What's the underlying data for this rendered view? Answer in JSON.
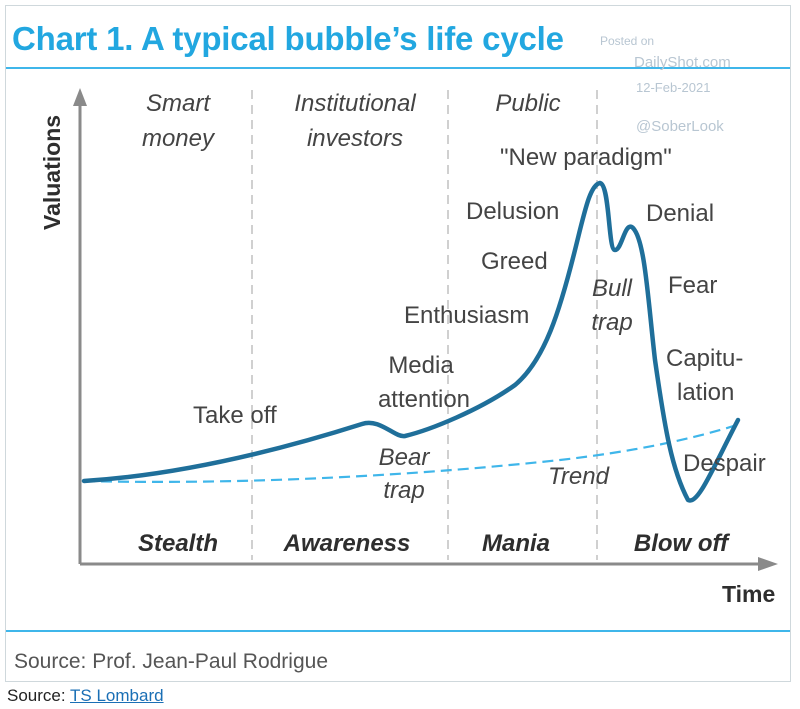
{
  "title": "Chart 1. A typical bubble’s life cycle",
  "watermark": {
    "posted_on": "Posted on",
    "site": "DailyShot.com",
    "date": "12-Feb-2021",
    "handle": "@SoberLook"
  },
  "axes": {
    "y_label": "Valuations",
    "x_label": "Time"
  },
  "columns": {
    "smart_money": [
      "Smart",
      "money"
    ],
    "institutional": [
      "Institutional",
      "investors"
    ],
    "public": [
      "Public"
    ]
  },
  "phases": {
    "stealth": "Stealth",
    "awareness": "Awareness",
    "mania": "Mania",
    "blow_off": "Blow off"
  },
  "annotations": {
    "take_off": "Take off",
    "media": [
      "Media",
      "attention"
    ],
    "bear_trap": [
      "Bear",
      "trap"
    ],
    "enthusiasm": "Enthusiasm",
    "greed": "Greed",
    "delusion": "Delusion",
    "new_paradigm": "\"New paradigm\"",
    "bull_trap": [
      "Bull",
      "trap"
    ],
    "denial": "Denial",
    "fear": "Fear",
    "capitulation": [
      "Capitu-",
      "lation"
    ],
    "despair": "Despair",
    "trend": "Trend"
  },
  "colors": {
    "curve": "#1f6f9a",
    "trend": "#3fb6ea",
    "title": "#22a7e0",
    "divider": "#d0d0d0"
  },
  "source_inner": "Source: Prof. Jean-Paul Rodrigue",
  "source_outer": {
    "prefix": "Source: ",
    "link": "TS Lombard"
  }
}
